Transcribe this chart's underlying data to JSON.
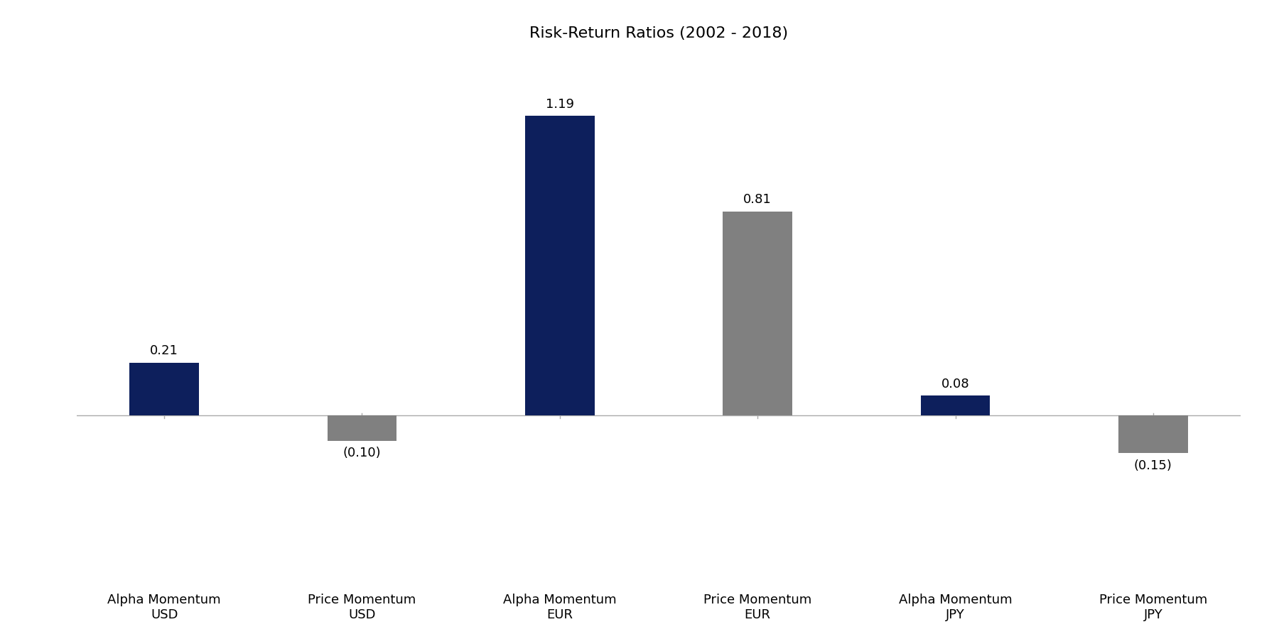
{
  "title": "Risk-Return Ratios (2002 - 2018)",
  "categories": [
    "Alpha Momentum\nUSD",
    "Price Momentum\nUSD",
    "Alpha Momentum\nEUR",
    "Price Momentum\nEUR",
    "Alpha Momentum\nJPY",
    "Price Momentum\nJPY"
  ],
  "values": [
    0.21,
    -0.1,
    1.19,
    0.81,
    0.08,
    -0.15
  ],
  "colors": [
    "#0d1f5c",
    "#808080",
    "#0d1f5c",
    "#808080",
    "#0d1f5c",
    "#808080"
  ],
  "bar_width": 0.35,
  "title_fontsize": 16,
  "label_fontsize": 13,
  "tick_fontsize": 13,
  "background_color": "#ffffff",
  "ylim_min": -0.38,
  "ylim_max": 1.42
}
